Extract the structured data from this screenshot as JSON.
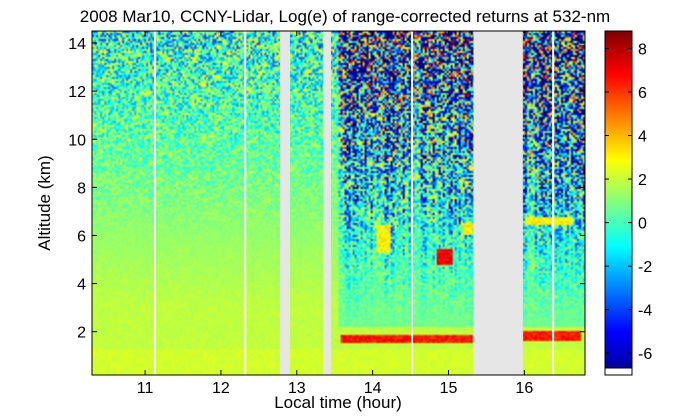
{
  "chart_data": {
    "type": "heatmap",
    "title": "2008 Mar10, CCNY-Lidar, Log(e) of range-corrected returns at 532-nm",
    "xlabel": "Local time (hour)",
    "ylabel": "Altitude (km)",
    "xlim": [
      10.3,
      16.8
    ],
    "ylim": [
      0.2,
      14.5
    ],
    "x_ticks": [
      11,
      12,
      13,
      14,
      15,
      16
    ],
    "y_ticks": [
      2,
      4,
      6,
      8,
      10,
      12,
      14
    ],
    "colorbar": {
      "range": [
        -7,
        8.8
      ],
      "ticks": [
        -6,
        -4,
        -2,
        0,
        2,
        4,
        6,
        8
      ],
      "colormap": "jet"
    },
    "data_gaps_hours": [
      [
        12.78,
        12.91
      ],
      [
        13.35,
        13.45
      ],
      [
        15.33,
        15.98
      ]
    ],
    "separator_lines_hours": [
      11.13,
      12.32,
      14.52,
      16.38
    ],
    "cloud_layers": [
      {
        "x": [
          13.58,
          15.33
        ],
        "altitude_km": [
          1.5,
          1.9
        ],
        "log_signal": 6.5
      },
      {
        "x": [
          15.98,
          16.75
        ],
        "altitude_km": [
          1.6,
          2.0
        ],
        "log_signal": 6.5
      },
      {
        "x": [
          16.0,
          16.65
        ],
        "altitude_km": [
          6.4,
          6.8
        ],
        "log_signal": 3.0
      },
      {
        "x": [
          14.05,
          14.25
        ],
        "altitude_km": [
          5.3,
          6.4
        ],
        "log_signal": 3.0
      },
      {
        "x": [
          14.85,
          15.05
        ],
        "altitude_km": [
          4.8,
          5.4
        ],
        "log_signal": 7.0
      },
      {
        "x": [
          15.2,
          15.33
        ],
        "altitude_km": [
          6.0,
          6.5
        ],
        "log_signal": 3.0
      }
    ]
  }
}
